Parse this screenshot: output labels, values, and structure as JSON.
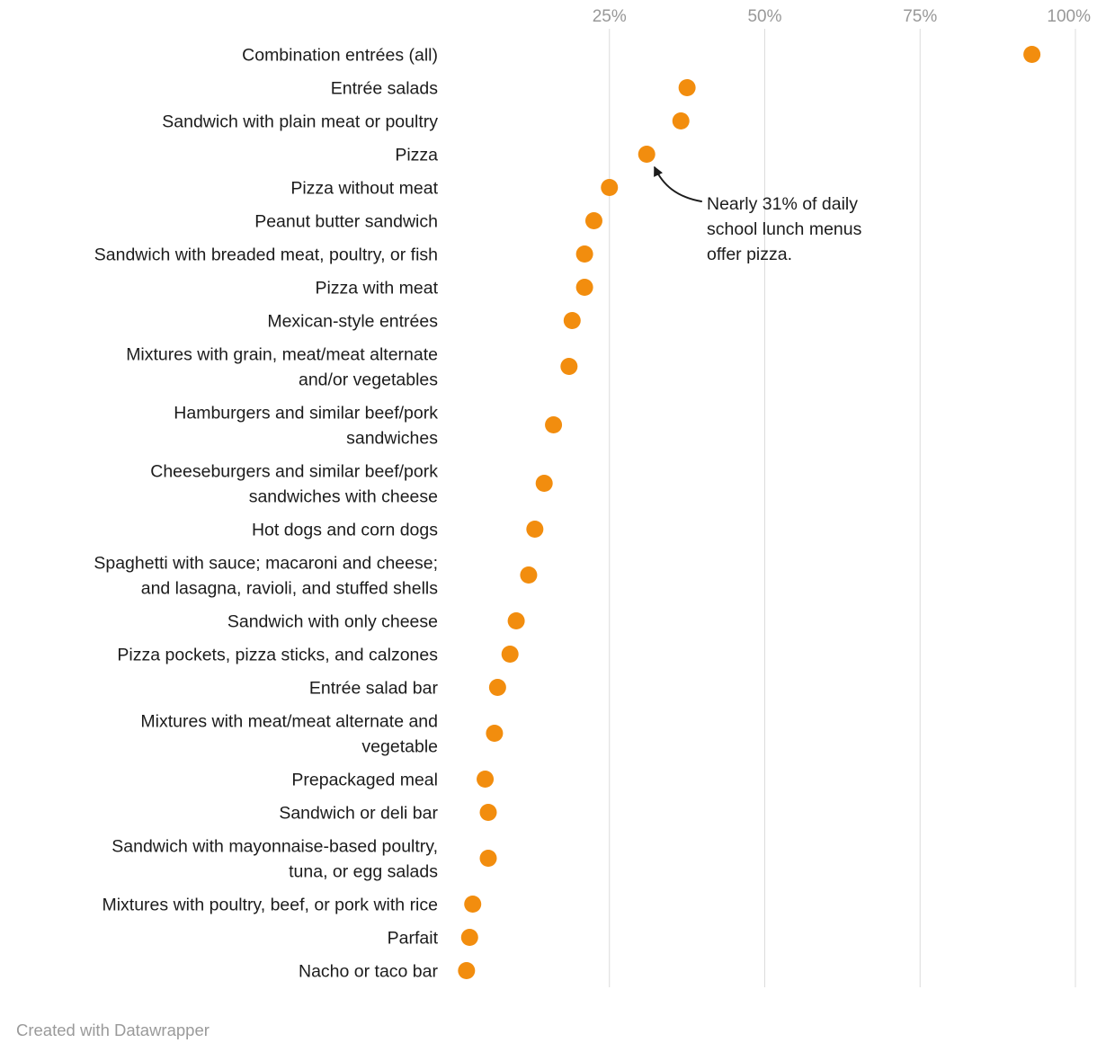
{
  "chart_data": {
    "type": "scatter",
    "variant": "dot-plot",
    "title": "",
    "xlabel": "",
    "ylabel": "",
    "xlim": [
      0,
      100
    ],
    "grid": "vertical",
    "legend": "none",
    "x_ticks": [
      {
        "value": 25,
        "label": "25%"
      },
      {
        "value": 50,
        "label": "50%"
      },
      {
        "value": 75,
        "label": "75%"
      },
      {
        "value": 100,
        "label": "100%"
      }
    ],
    "rows": [
      {
        "label_lines": [
          "Combination entrées (all)"
        ],
        "value": 93
      },
      {
        "label_lines": [
          "Entrée salads"
        ],
        "value": 37.5
      },
      {
        "label_lines": [
          "Sandwich with plain meat or poultry"
        ],
        "value": 36.5
      },
      {
        "label_lines": [
          "Pizza"
        ],
        "value": 31
      },
      {
        "label_lines": [
          "Pizza without meat"
        ],
        "value": 25
      },
      {
        "label_lines": [
          "Peanut butter sandwich"
        ],
        "value": 22.5
      },
      {
        "label_lines": [
          "Sandwich with breaded meat, poultry, or fish"
        ],
        "value": 21
      },
      {
        "label_lines": [
          "Pizza with meat"
        ],
        "value": 21
      },
      {
        "label_lines": [
          "Mexican-style entrées"
        ],
        "value": 19
      },
      {
        "label_lines": [
          "Mixtures with grain, meat/meat alternate",
          "and/or vegetables"
        ],
        "value": 18.5
      },
      {
        "label_lines": [
          "Hamburgers and similar beef/pork",
          "sandwiches"
        ],
        "value": 16
      },
      {
        "label_lines": [
          "Cheeseburgers and similar beef/pork",
          "sandwiches with cheese"
        ],
        "value": 14.5
      },
      {
        "label_lines": [
          "Hot dogs and corn dogs"
        ],
        "value": 13
      },
      {
        "label_lines": [
          "Spaghetti with sauce; macaroni and cheese;",
          "and lasagna, ravioli, and stuffed shells"
        ],
        "value": 12
      },
      {
        "label_lines": [
          "Sandwich with only cheese"
        ],
        "value": 10
      },
      {
        "label_lines": [
          "Pizza pockets, pizza sticks, and calzones"
        ],
        "value": 9
      },
      {
        "label_lines": [
          "Entrée salad bar"
        ],
        "value": 7
      },
      {
        "label_lines": [
          "Mixtures with meat/meat alternate and",
          "vegetable"
        ],
        "value": 6.5
      },
      {
        "label_lines": [
          "Prepackaged meal"
        ],
        "value": 5
      },
      {
        "label_lines": [
          "Sandwich or deli bar"
        ],
        "value": 5.5
      },
      {
        "label_lines": [
          "Sandwich with mayonnaise-based poultry,",
          "tuna, or egg salads"
        ],
        "value": 5.5
      },
      {
        "label_lines": [
          "Mixtures with poultry, beef, or pork with rice"
        ],
        "value": 3
      },
      {
        "label_lines": [
          "Parfait"
        ],
        "value": 2.5
      },
      {
        "label_lines": [
          "Nacho or taco bar"
        ],
        "value": 2
      }
    ],
    "annotation": {
      "lines": [
        "Nearly 31% of daily",
        "school lunch menus",
        "offer pizza."
      ],
      "target_category": "Pizza",
      "target_value": 31
    },
    "colors": {
      "dot": "#f28d0e",
      "category_text": "#1c1c1c",
      "tick_text": "#989898",
      "gridline": "#dcdcdc",
      "annotation_text": "#1c1c1c",
      "arrow": "#1c1c1c",
      "footer_text": "#9a9a9a",
      "background": "#ffffff"
    }
  },
  "footer": {
    "attribution": "Created with Datawrapper"
  }
}
